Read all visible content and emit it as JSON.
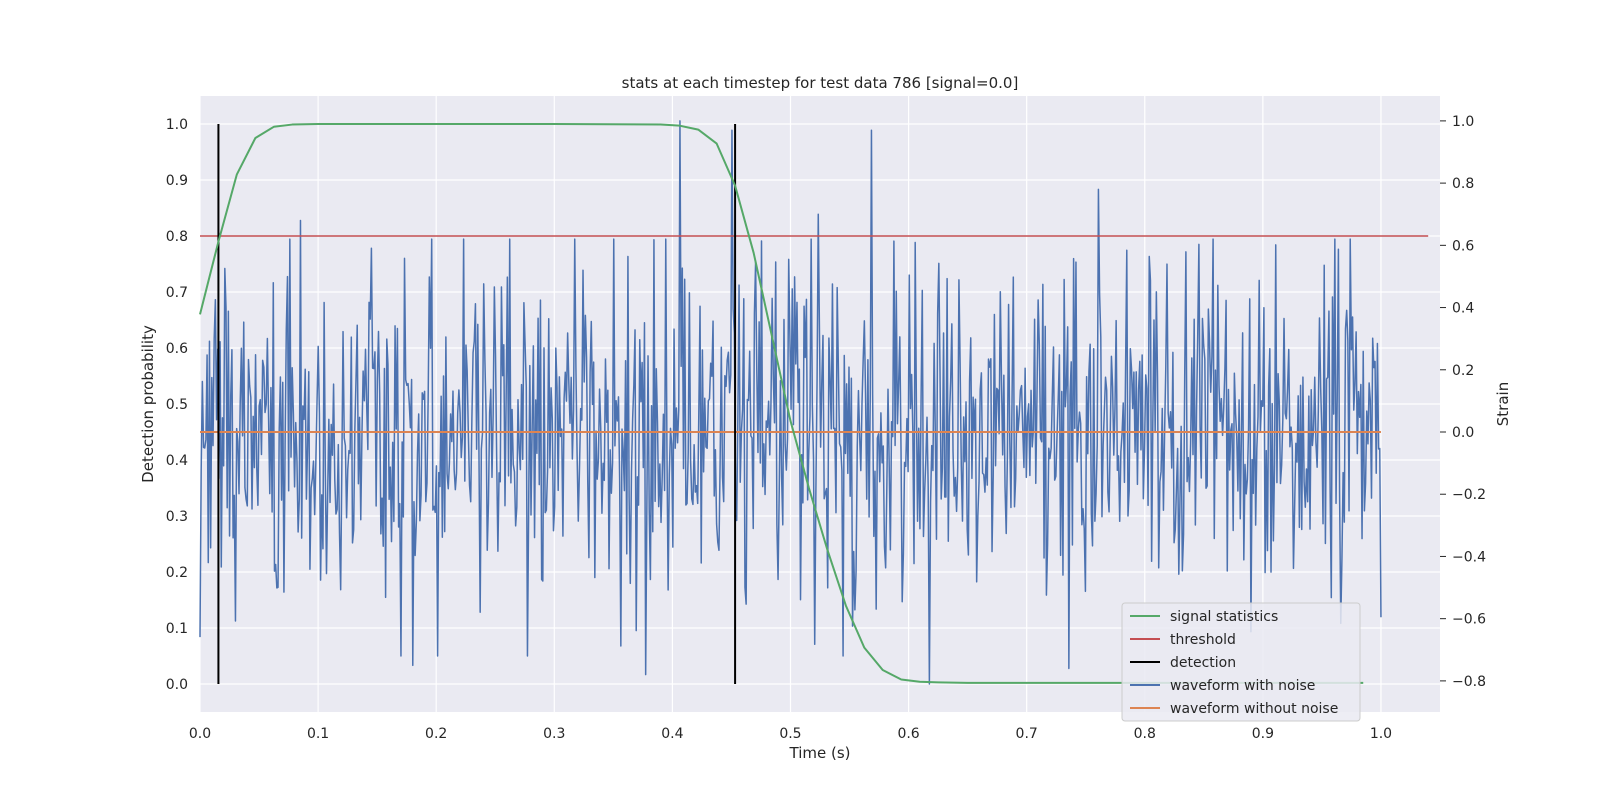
{
  "chart_data": {
    "type": "line",
    "title": "stats at each timestep for test data 786 [signal=0.0]",
    "xlabel": "Time (s)",
    "ylabel": "Detection probability",
    "y2label": "Strain",
    "xlim": [
      0.0,
      1.05
    ],
    "ylim": [
      -0.05,
      1.05
    ],
    "y2lim": [
      -0.9,
      1.08
    ],
    "x_ticks": [
      "0.0",
      "0.1",
      "0.2",
      "0.3",
      "0.4",
      "0.5",
      "0.6",
      "0.7",
      "0.8",
      "0.9",
      "1.0"
    ],
    "y_ticks": [
      "0.0",
      "0.1",
      "0.2",
      "0.3",
      "0.4",
      "0.5",
      "0.6",
      "0.7",
      "0.8",
      "0.9",
      "1.0"
    ],
    "y2_ticks": [
      "−0.8",
      "−0.6",
      "−0.4",
      "−0.2",
      "0.0",
      "0.2",
      "0.4",
      "0.6",
      "0.8",
      "1.0"
    ],
    "grid": true,
    "legend_position": "lower-right",
    "colors": {
      "signal_statistics": "#55a868",
      "threshold": "#c44e52",
      "detection": "#000000",
      "waveform_with_noise": "#4c72b0",
      "waveform_without_noise": "#dd8452",
      "plot_background": "#eaeaf2",
      "grid": "#ffffff"
    },
    "legend": {
      "signal_statistics": "signal statistics",
      "threshold": "threshold",
      "detection": "detection",
      "waveform_with_noise": "waveform with noise",
      "waveform_without_noise": "waveform without noise"
    },
    "signal_statistics": {
      "x": [
        0.0,
        0.0156,
        0.0312,
        0.0469,
        0.0625,
        0.0781,
        0.1,
        0.2,
        0.3,
        0.39,
        0.4062,
        0.4219,
        0.4375,
        0.4531,
        0.4688,
        0.4844,
        0.5,
        0.5156,
        0.5312,
        0.5469,
        0.5625,
        0.5781,
        0.5938,
        0.6094,
        0.625,
        0.65,
        0.7,
        0.8,
        0.9,
        0.985
      ],
      "y": [
        0.66,
        0.79,
        0.91,
        0.975,
        0.995,
        0.999,
        1.0,
        1.0,
        1.0,
        0.999,
        0.997,
        0.99,
        0.965,
        0.89,
        0.77,
        0.62,
        0.47,
        0.35,
        0.24,
        0.14,
        0.065,
        0.025,
        0.008,
        0.004,
        0.003,
        0.002,
        0.002,
        0.002,
        0.002,
        0.002
      ]
    },
    "threshold": {
      "value": 0.8,
      "x_range": [
        0.0,
        1.04
      ]
    },
    "detection": {
      "x": [
        0.0156,
        0.4531
      ],
      "y_range": [
        0.0,
        1.0
      ]
    },
    "waveform_without_noise": {
      "value": 0.0,
      "x_range": [
        0.0,
        1.0
      ]
    },
    "waveform_with_noise": {
      "x_range": [
        0.0,
        1.0
      ],
      "num_points": 1000,
      "y_range": [
        -0.81,
        1.0
      ],
      "spikes": [
        {
          "x": 0.0855,
          "y": 0.68
        },
        {
          "x": 0.18,
          "y": -0.75
        },
        {
          "x": 0.377,
          "y": -0.78
        },
        {
          "x": 0.406,
          "y": 1.0
        },
        {
          "x": 0.45,
          "y": 0.97
        },
        {
          "x": 0.524,
          "y": 0.7
        },
        {
          "x": 0.569,
          "y": 0.97
        },
        {
          "x": 0.6175,
          "y": -0.81
        },
        {
          "x": 0.736,
          "y": -0.76
        },
        {
          "x": 0.761,
          "y": 0.78
        }
      ]
    }
  }
}
